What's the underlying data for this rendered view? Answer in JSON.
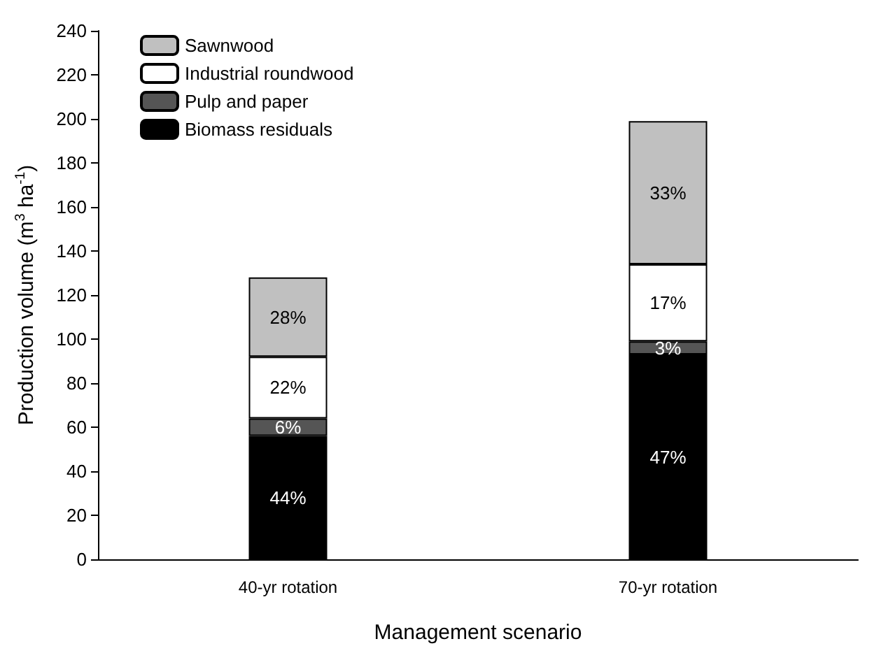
{
  "chart_data": {
    "type": "bar",
    "stacked": true,
    "xlabel": "Management scenario",
    "ylabel": "Production volume (m$^{3}$ ha$^{-1}$)",
    "categories": [
      "40-yr rotation",
      "70-yr rotation"
    ],
    "series": [
      {
        "name": "Biomass residuals",
        "color": "#000000",
        "values": [
          56,
          93
        ]
      },
      {
        "name": "Pulp and paper",
        "color": "#555555",
        "values": [
          8,
          6
        ]
      },
      {
        "name": "Industrial roundwood",
        "color": "#ffffff",
        "values": [
          28,
          35
        ]
      },
      {
        "name": "Sawnwood",
        "color": "#c0c0c0",
        "values": [
          36,
          65
        ]
      }
    ],
    "annotations": [
      "44%",
      "6%",
      "22%",
      "28%",
      "47%",
      "3%",
      "17%",
      "33%"
    ],
    "ylim": [
      0,
      240
    ],
    "yticks": [
      0,
      20,
      40,
      60,
      80,
      100,
      120,
      140,
      160,
      180,
      200,
      220,
      240
    ],
    "grid": false,
    "legend": "top left"
  }
}
